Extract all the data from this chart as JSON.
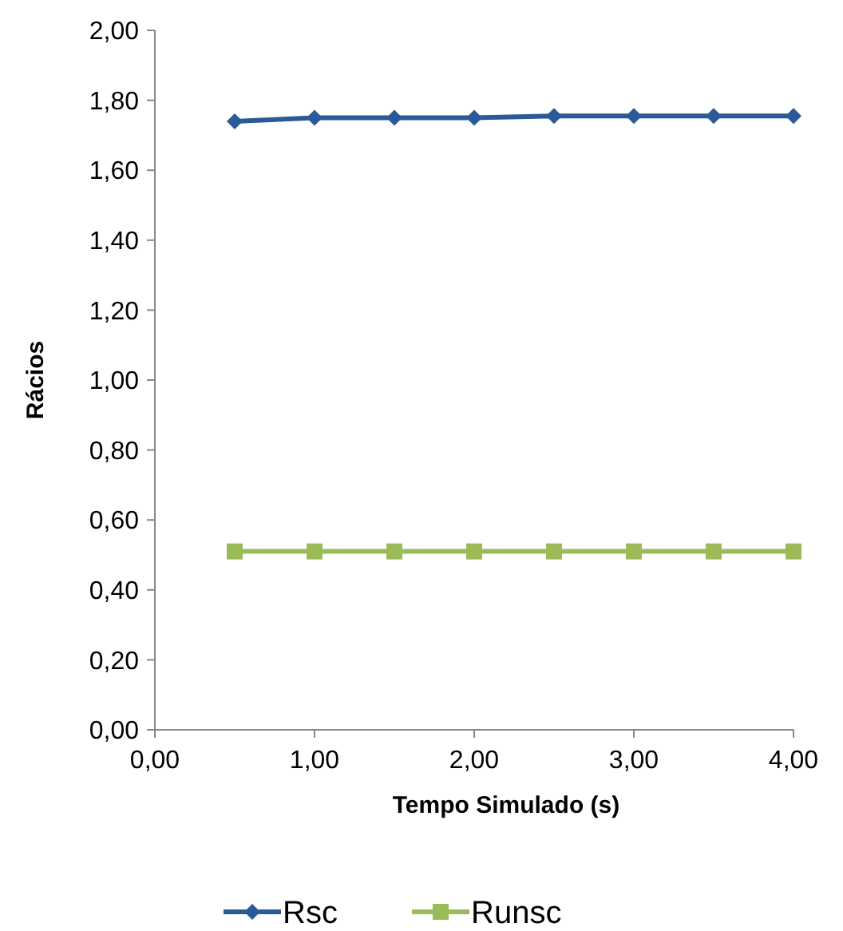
{
  "chart_data": {
    "type": "line",
    "xlabel": "Tempo Simulado (s)",
    "ylabel": "Rácios",
    "x": [
      0.5,
      1,
      1.5,
      2,
      2.5,
      3,
      3.5,
      4
    ],
    "series": [
      {
        "name": "Rsc",
        "color": "#2a5a97",
        "marker": "diamond",
        "values": [
          1.74,
          1.75,
          1.75,
          1.75,
          1.755,
          1.755,
          1.755,
          1.755
        ]
      },
      {
        "name": "Runsc",
        "color": "#9bbb59",
        "marker": "square",
        "values": [
          0.51,
          0.51,
          0.51,
          0.51,
          0.51,
          0.51,
          0.51,
          0.51
        ]
      }
    ],
    "xlim": [
      0,
      4
    ],
    "xticks": [
      {
        "value": 0,
        "label": "0,00"
      },
      {
        "value": 1,
        "label": "1,00"
      },
      {
        "value": 2,
        "label": "2,00"
      },
      {
        "value": 3,
        "label": "3,00"
      },
      {
        "value": 4,
        "label": "4,00"
      }
    ],
    "ylim": [
      0,
      2
    ],
    "yticks": [
      {
        "value": 0,
        "label": "0,00"
      },
      {
        "value": 0.2,
        "label": "0,20"
      },
      {
        "value": 0.4,
        "label": "0,40"
      },
      {
        "value": 0.6,
        "label": "0,60"
      },
      {
        "value": 0.8,
        "label": "0,80"
      },
      {
        "value": 1,
        "label": "1,00"
      },
      {
        "value": 1.2,
        "label": "1,20"
      },
      {
        "value": 1.4,
        "label": "1,40"
      },
      {
        "value": 1.6,
        "label": "1,60"
      },
      {
        "value": 1.8,
        "label": "1,80"
      },
      {
        "value": 2,
        "label": "2,00"
      }
    ],
    "legend": "bottom",
    "grid": false
  }
}
